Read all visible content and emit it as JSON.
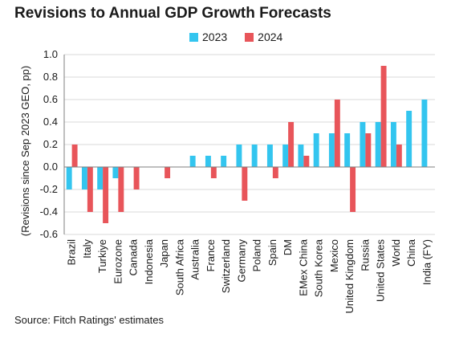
{
  "source": "Source: Fitch Ratings' estimates",
  "chart_data": {
    "type": "bar",
    "title": "Revisions to Annual GDP Growth Forecasts",
    "ylabel": "(Revisions since Sep 2023 GEO, pp)",
    "xlabel": "",
    "ylim": [
      -0.6,
      1.0
    ],
    "yticks": [
      "1.0",
      "0.8",
      "0.6",
      "0.4",
      "0.2",
      "0.0",
      "-0.2",
      "-0.4",
      "-0.6"
    ],
    "grid": true,
    "legend_position": "top",
    "categories": [
      "Brazil",
      "Italy",
      "Turkiye",
      "Eurozone",
      "Canada",
      "Indonesia",
      "Japan",
      "South Africa",
      "Australia",
      "France",
      "Switzerland",
      "Germany",
      "Poland",
      "Spain",
      "DM",
      "EMex China",
      "South Korea",
      "Mexico",
      "United Kingdom",
      "Russia",
      "United States",
      "World",
      "China",
      "India (FY)"
    ],
    "series": [
      {
        "name": "2023",
        "color": "#33c5ef",
        "values": [
          -0.2,
          -0.2,
          -0.2,
          -0.1,
          0,
          0,
          0,
          0,
          0.1,
          0.1,
          0.1,
          0.2,
          0.2,
          0.2,
          0.2,
          0.2,
          0.3,
          0.3,
          0.3,
          0.4,
          0.4,
          0.4,
          0.5,
          0.6
        ]
      },
      {
        "name": "2024",
        "color": "#e8555a",
        "values": [
          0.2,
          -0.4,
          -0.5,
          -0.4,
          -0.2,
          0,
          -0.1,
          0,
          0,
          -0.1,
          0,
          -0.3,
          0,
          -0.1,
          0.4,
          0.1,
          0,
          0.6,
          -0.4,
          0.3,
          0.9,
          0.2,
          0,
          0
        ]
      }
    ]
  }
}
